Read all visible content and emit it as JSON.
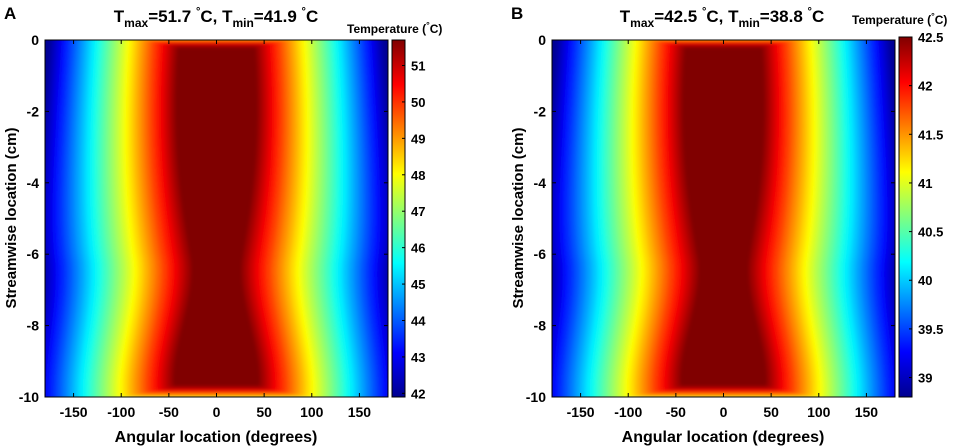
{
  "chart_data": [
    {
      "panel_label": "A",
      "type": "heatmap",
      "title": {
        "pre": "T",
        "max_sub": "max",
        "max_val": "=51.7 ",
        "deg": "°",
        "c1": "C, T",
        "min_sub": "min",
        "min_val": "=41.9 ",
        "c2": "C"
      },
      "t_max": 51.7,
      "t_min": 41.9,
      "xlabel": "Angular location (degrees)",
      "ylabel": "Streamwise location (cm)",
      "xlim": [
        -180,
        180
      ],
      "ylim": [
        -10,
        0
      ],
      "xticks": [
        -150,
        -100,
        -50,
        0,
        50,
        100,
        150
      ],
      "yticks": [
        0,
        -2,
        -4,
        -6,
        -8,
        -10
      ],
      "colorbar": {
        "title": "Temperature (",
        "deg": "°",
        "title_end": "C)",
        "range": [
          41.9,
          51.7
        ],
        "ticks": [
          51,
          50,
          49,
          48,
          47,
          46,
          45,
          44,
          43,
          42
        ]
      }
    },
    {
      "panel_label": "B",
      "type": "heatmap",
      "title": {
        "pre": "T",
        "max_sub": "max",
        "max_val": "=42.5 ",
        "deg": "°",
        "c1": "C, T",
        "min_sub": "min",
        "min_val": "=38.8 ",
        "c2": "C"
      },
      "t_max": 42.5,
      "t_min": 38.8,
      "xlabel": "Angular location (degrees)",
      "ylabel": "Streamwise location (cm)",
      "xlim": [
        -180,
        180
      ],
      "ylim": [
        -10,
        0
      ],
      "xticks": [
        -150,
        -100,
        -50,
        0,
        50,
        100,
        150
      ],
      "yticks": [
        0,
        -2,
        -4,
        -6,
        -8,
        -10
      ],
      "colorbar": {
        "title": "Temperature (",
        "deg": "°",
        "title_end": "C)",
        "range": [
          38.8,
          42.5
        ],
        "ticks": [
          "42.5",
          "42",
          "41.5",
          "41",
          "40.5",
          "40",
          "39.5",
          "39"
        ]
      }
    }
  ]
}
